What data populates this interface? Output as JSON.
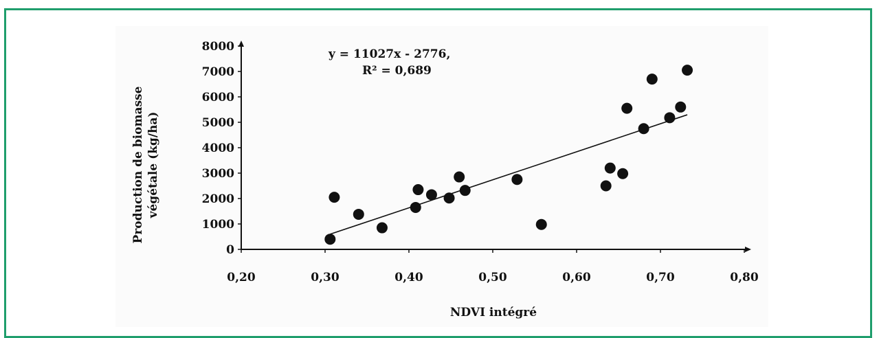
{
  "chart_data": {
    "type": "scatter",
    "title": "",
    "xlabel": "NDVI intégré",
    "ylabel_lines": [
      "Production de biomasse",
      "végétale (kg/ha)"
    ],
    "xlim": [
      0.2,
      0.8
    ],
    "ylim": [
      0,
      8000
    ],
    "xticks": [
      "0,20",
      "0,30",
      "0,40",
      "0,50",
      "0,60",
      "0,70",
      "0,80"
    ],
    "yticks": [
      "0",
      "1000",
      "2000",
      "3000",
      "4000",
      "5000",
      "6000",
      "7000",
      "8000"
    ],
    "grid": false,
    "points": {
      "x": [
        0.306,
        0.311,
        0.34,
        0.368,
        0.408,
        0.411,
        0.427,
        0.448,
        0.46,
        0.467,
        0.529,
        0.558,
        0.635,
        0.64,
        0.655,
        0.66,
        0.68,
        0.69,
        0.711,
        0.724,
        0.732
      ],
      "y": [
        400,
        2050,
        1380,
        850,
        1650,
        2350,
        2150,
        2020,
        2850,
        2320,
        2750,
        980,
        2500,
        3200,
        2980,
        5550,
        4750,
        6700,
        5180,
        5600,
        7050
      ]
    },
    "trendline": {
      "equation": "y = 11027x - 2776,",
      "r2": "R² = 0,689",
      "slope": 11027,
      "intercept": -2776,
      "x_range": [
        0.306,
        0.732
      ]
    },
    "colors": {
      "frame": "#1f9e6c",
      "marker": "#111111",
      "line": "#111111"
    }
  }
}
